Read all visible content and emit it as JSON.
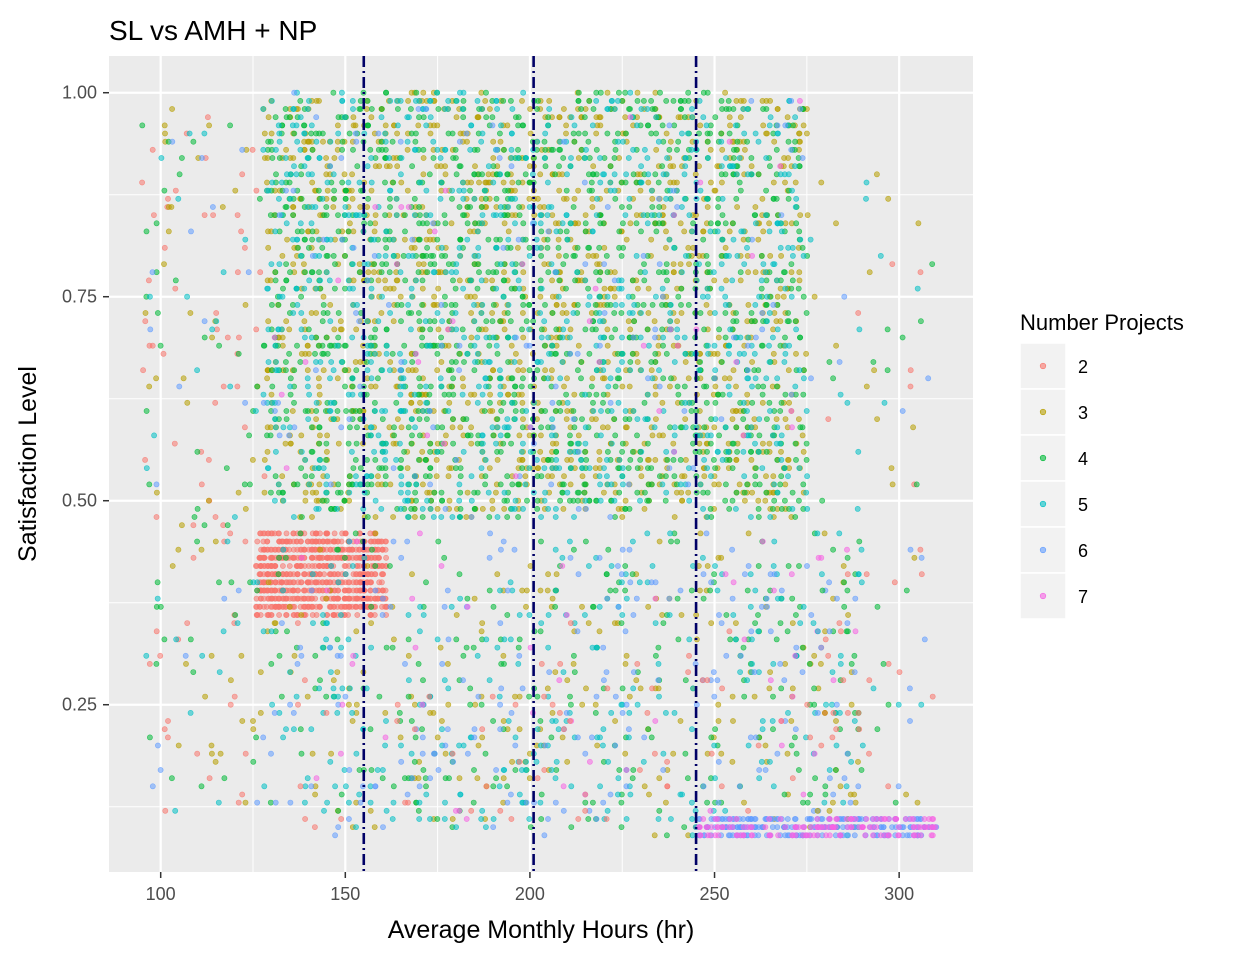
{
  "chart_data": {
    "type": "scatter",
    "title": "SL vs AMH + NP",
    "xlabel": "Average Monthly Hours (hr)",
    "ylabel": "Satisfaction Level",
    "xlim": [
      86,
      320
    ],
    "ylim": [
      0.045,
      1.045
    ],
    "x_ticks": [
      100,
      150,
      200,
      250,
      300
    ],
    "y_ticks": [
      0.25,
      0.5,
      0.75,
      1.0
    ],
    "y_tick_labels": [
      "0.25",
      "0.50",
      "0.75",
      "1.00"
    ],
    "grid": true,
    "background": "#ebebeb",
    "legend": {
      "title": "Number Projects",
      "position": "right"
    },
    "series": [
      {
        "name": "2",
        "color": "#F8766D"
      },
      {
        "name": "3",
        "color": "#B79F00"
      },
      {
        "name": "4",
        "color": "#00BA38"
      },
      {
        "name": "5",
        "color": "#00BFC4"
      },
      {
        "name": "6",
        "color": "#619CFF"
      },
      {
        "name": "7",
        "color": "#F564E3"
      }
    ],
    "clusters": [
      {
        "series": "2",
        "x": [
          126,
          161
        ],
        "y": [
          0.36,
          0.46
        ],
        "n": 800,
        "step": 0.01,
        "jitter_x": 0.5
      },
      {
        "series": "3",
        "x": [
          128,
          275
        ],
        "y": [
          0.48,
          1.0
        ],
        "n": 1300,
        "step": 0.01,
        "jitter_x": 0.5
      },
      {
        "series": "4",
        "x": [
          128,
          275
        ],
        "y": [
          0.48,
          1.0
        ],
        "n": 1300,
        "step": 0.01,
        "jitter_x": 0.5
      },
      {
        "series": "5",
        "x": [
          128,
          275
        ],
        "y": [
          0.48,
          1.0
        ],
        "n": 900,
        "step": 0.01,
        "jitter_x": 0.5
      },
      {
        "series": "6",
        "x": [
          128,
          275
        ],
        "y": [
          0.48,
          1.0
        ],
        "n": 120,
        "step": 0.01,
        "jitter_x": 0.5
      },
      {
        "series": "7",
        "x": [
          128,
          275
        ],
        "y": [
          0.48,
          1.0
        ],
        "n": 40,
        "step": 0.01,
        "jitter_x": 0.5
      },
      {
        "series": "3",
        "x": [
          128,
          290
        ],
        "y": [
          0.09,
          0.46
        ],
        "n": 200,
        "step": 0.01,
        "jitter_x": 0.5
      },
      {
        "series": "4",
        "x": [
          128,
          290
        ],
        "y": [
          0.09,
          0.46
        ],
        "n": 260,
        "step": 0.01,
        "jitter_x": 0.5
      },
      {
        "series": "5",
        "x": [
          128,
          290
        ],
        "y": [
          0.09,
          0.46
        ],
        "n": 280,
        "step": 0.01,
        "jitter_x": 0.5
      },
      {
        "series": "6",
        "x": [
          128,
          290
        ],
        "y": [
          0.09,
          0.46
        ],
        "n": 190,
        "step": 0.01,
        "jitter_x": 0.5
      },
      {
        "series": "7",
        "x": [
          128,
          290
        ],
        "y": [
          0.09,
          0.46
        ],
        "n": 50,
        "step": 0.01,
        "jitter_x": 0.5
      },
      {
        "series": "2",
        "x": [
          128,
          290
        ],
        "y": [
          0.09,
          0.35
        ],
        "n": 70,
        "step": 0.01,
        "jitter_x": 0.5
      },
      {
        "series": "6",
        "x": [
          245,
          310
        ],
        "y": [
          0.09,
          0.11
        ],
        "n": 230,
        "step": 0.01,
        "jitter_x": 0.5
      },
      {
        "series": "7",
        "x": [
          245,
          310
        ],
        "y": [
          0.09,
          0.11
        ],
        "n": 140,
        "step": 0.01,
        "jitter_x": 0.5
      },
      {
        "series": "2",
        "x": [
          95,
          128
        ],
        "y": [
          0.1,
          1.0
        ],
        "n": 70,
        "step": 0.01,
        "jitter_x": 0.5
      },
      {
        "series": "3",
        "x": [
          95,
          128
        ],
        "y": [
          0.1,
          1.0
        ],
        "n": 50,
        "step": 0.01,
        "jitter_x": 0.5
      },
      {
        "series": "4",
        "x": [
          95,
          128
        ],
        "y": [
          0.1,
          1.0
        ],
        "n": 50,
        "step": 0.01,
        "jitter_x": 0.5
      },
      {
        "series": "5",
        "x": [
          95,
          128
        ],
        "y": [
          0.1,
          1.0
        ],
        "n": 30,
        "step": 0.01,
        "jitter_x": 0.5
      },
      {
        "series": "6",
        "x": [
          95,
          128
        ],
        "y": [
          0.1,
          1.0
        ],
        "n": 20,
        "step": 0.01,
        "jitter_x": 0.5
      },
      {
        "series": "2",
        "x": [
          275,
          310
        ],
        "y": [
          0.12,
          0.8
        ],
        "n": 25,
        "step": 0.01,
        "jitter_x": 0.5
      },
      {
        "series": "3",
        "x": [
          275,
          310
        ],
        "y": [
          0.12,
          0.9
        ],
        "n": 20,
        "step": 0.01,
        "jitter_x": 0.5
      },
      {
        "series": "4",
        "x": [
          275,
          310
        ],
        "y": [
          0.12,
          0.9
        ],
        "n": 20,
        "step": 0.01,
        "jitter_x": 0.5
      },
      {
        "series": "5",
        "x": [
          275,
          310
        ],
        "y": [
          0.12,
          0.95
        ],
        "n": 20,
        "step": 0.01,
        "jitter_x": 0.5
      },
      {
        "series": "6",
        "x": [
          275,
          310
        ],
        "y": [
          0.12,
          0.8
        ],
        "n": 15,
        "step": 0.01,
        "jitter_x": 0.5
      }
    ],
    "vlines": [
      {
        "x": 155,
        "color": "#000066",
        "style": "dotdash"
      },
      {
        "x": 201,
        "color": "#000066",
        "style": "dotdash"
      },
      {
        "x": 245,
        "color": "#000066",
        "style": "dotdash"
      }
    ]
  }
}
